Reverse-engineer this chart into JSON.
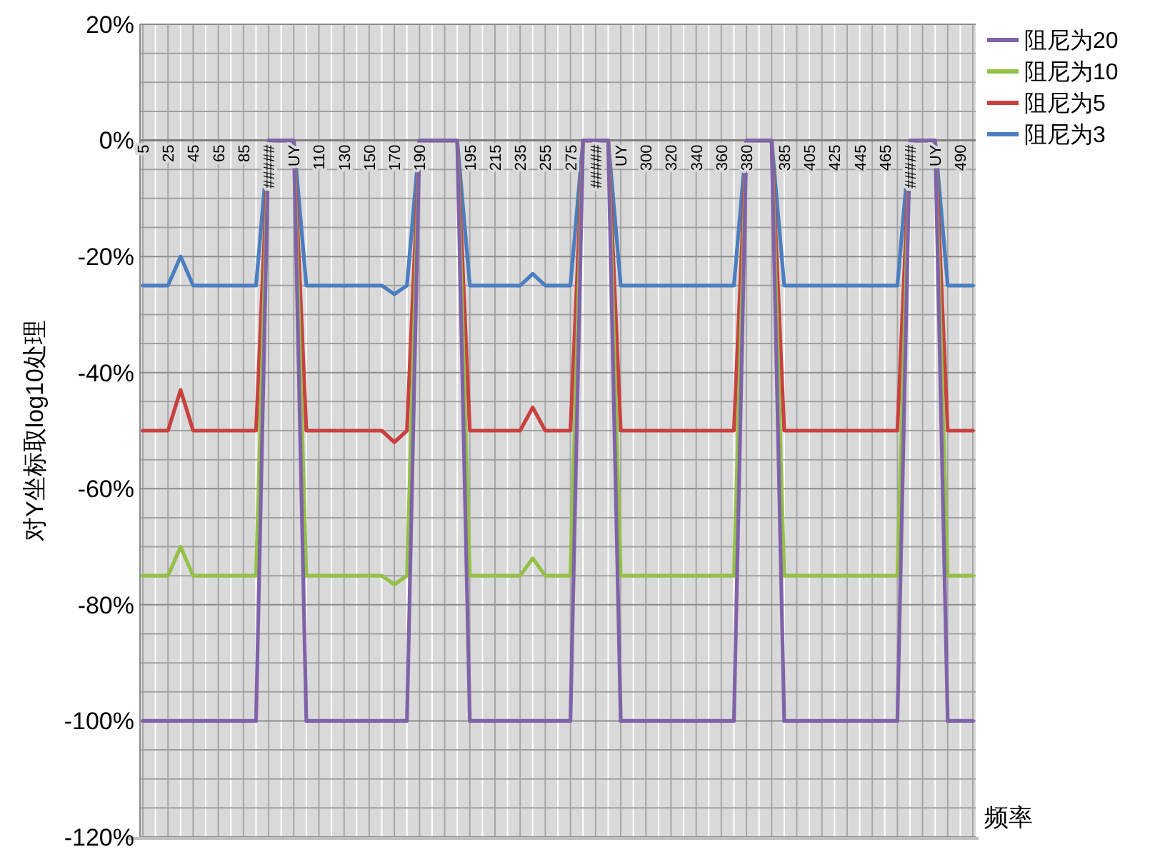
{
  "chart_data": {
    "type": "line",
    "ylabel": "对Y坐标取log10处理",
    "xlabel": "频率",
    "categories": [
      "5",
      null,
      "25",
      null,
      "45",
      null,
      "65",
      null,
      "85",
      null,
      "#####",
      null,
      "UY",
      null,
      "110",
      null,
      "130",
      null,
      "150",
      null,
      "170",
      null,
      "190",
      null,
      null,
      null,
      "195",
      null,
      "215",
      null,
      "235",
      null,
      "255",
      null,
      "275",
      null,
      "#####",
      null,
      "UY",
      null,
      "300",
      null,
      "320",
      null,
      "340",
      null,
      "360",
      null,
      "380",
      null,
      null,
      "385",
      null,
      "405",
      null,
      "425",
      null,
      "445",
      null,
      "465",
      null,
      "#####",
      null,
      "UY",
      null,
      "490",
      null
    ],
    "series": [
      {
        "name": "阻尼为20",
        "color": "#7f62a8",
        "values": [
          -100,
          -100,
          -100,
          -100,
          -100,
          -100,
          -100,
          -100,
          -100,
          -100,
          0,
          0,
          0,
          -100,
          -100,
          -100,
          -100,
          -100,
          -100,
          -100,
          -100,
          -100,
          0,
          0,
          0,
          0,
          -100,
          -100,
          -100,
          -100,
          -100,
          -100,
          -100,
          -100,
          -100,
          0,
          0,
          0,
          -100,
          -100,
          -100,
          -100,
          -100,
          -100,
          -100,
          -100,
          -100,
          -100,
          0,
          0,
          0,
          -100,
          -100,
          -100,
          -100,
          -100,
          -100,
          -100,
          -100,
          -100,
          -100,
          0,
          0,
          0,
          -100,
          -100,
          -100
        ]
      },
      {
        "name": "阻尼为10",
        "color": "#94c047",
        "values": [
          -75,
          -75,
          -75,
          -70,
          -75,
          -75,
          -75,
          -75,
          -75,
          -75,
          0,
          0,
          0,
          -75,
          -75,
          -75,
          -75,
          -75,
          -75,
          -75,
          -76.5,
          -75,
          0,
          0,
          0,
          0,
          -75,
          -75,
          -75,
          -75,
          -75,
          -72,
          -75,
          -75,
          -75,
          0,
          0,
          0,
          -75,
          -75,
          -75,
          -75,
          -75,
          -75,
          -75,
          -75,
          -75,
          -75,
          0,
          0,
          0,
          -75,
          -75,
          -75,
          -75,
          -75,
          -75,
          -75,
          -75,
          -75,
          -75,
          0,
          0,
          0,
          -75,
          -75,
          -75
        ]
      },
      {
        "name": "阻尼为5",
        "color": "#c9413f",
        "values": [
          -50,
          -50,
          -50,
          -43,
          -50,
          -50,
          -50,
          -50,
          -50,
          -50,
          0,
          0,
          0,
          -50,
          -50,
          -50,
          -50,
          -50,
          -50,
          -50,
          -52,
          -50,
          0,
          0,
          0,
          0,
          -50,
          -50,
          -50,
          -50,
          -50,
          -46,
          -50,
          -50,
          -50,
          0,
          0,
          0,
          -50,
          -50,
          -50,
          -50,
          -50,
          -50,
          -50,
          -50,
          -50,
          -50,
          0,
          0,
          0,
          -50,
          -50,
          -50,
          -50,
          -50,
          -50,
          -50,
          -50,
          -50,
          -50,
          0,
          0,
          0,
          -50,
          -50,
          -50
        ]
      },
      {
        "name": "阻尼为3",
        "color": "#4a7ec0",
        "values": [
          -25,
          -25,
          -25,
          -20,
          -25,
          -25,
          -25,
          -25,
          -25,
          -25,
          0,
          0,
          0,
          -25,
          -25,
          -25,
          -25,
          -25,
          -25,
          -25,
          -26.5,
          -25,
          0,
          0,
          0,
          0,
          -25,
          -25,
          -25,
          -25,
          -25,
          -23,
          -25,
          -25,
          -25,
          0,
          0,
          0,
          -25,
          -25,
          -25,
          -25,
          -25,
          -25,
          -25,
          -25,
          -25,
          -25,
          0,
          0,
          0,
          -25,
          -25,
          -25,
          -25,
          -25,
          -25,
          -25,
          -25,
          -25,
          -25,
          0,
          0,
          0,
          -25,
          -25,
          -25
        ]
      }
    ],
    "ylim": [
      -120,
      20
    ],
    "yticks": [
      {
        "value": -120,
        "label": "-120%"
      },
      {
        "value": -115,
        "label": null
      },
      {
        "value": -110,
        "label": null
      },
      {
        "value": -105,
        "label": null
      },
      {
        "value": -100,
        "label": "-100%"
      },
      {
        "value": -95,
        "label": null
      },
      {
        "value": -90,
        "label": null
      },
      {
        "value": -85,
        "label": null
      },
      {
        "value": -80,
        "label": "-80%"
      },
      {
        "value": -75,
        "label": null
      },
      {
        "value": -70,
        "label": null
      },
      {
        "value": -65,
        "label": null
      },
      {
        "value": -60,
        "label": "-60%"
      },
      {
        "value": -55,
        "label": null
      },
      {
        "value": -50,
        "label": null
      },
      {
        "value": -45,
        "label": null
      },
      {
        "value": -40,
        "label": "-40%"
      },
      {
        "value": -35,
        "label": null
      },
      {
        "value": -30,
        "label": null
      },
      {
        "value": -25,
        "label": null
      },
      {
        "value": -20,
        "label": "-20%"
      },
      {
        "value": -15,
        "label": null
      },
      {
        "value": -10,
        "label": null
      },
      {
        "value": -5,
        "label": null
      },
      {
        "value": 0,
        "label": "0%"
      },
      {
        "value": 5,
        "label": null
      },
      {
        "value": 10,
        "label": null
      },
      {
        "value": 15,
        "label": null
      },
      {
        "value": 20,
        "label": "20%"
      }
    ],
    "grid": true,
    "legend": "top right",
    "marker": "none",
    "line_style": "solid"
  }
}
